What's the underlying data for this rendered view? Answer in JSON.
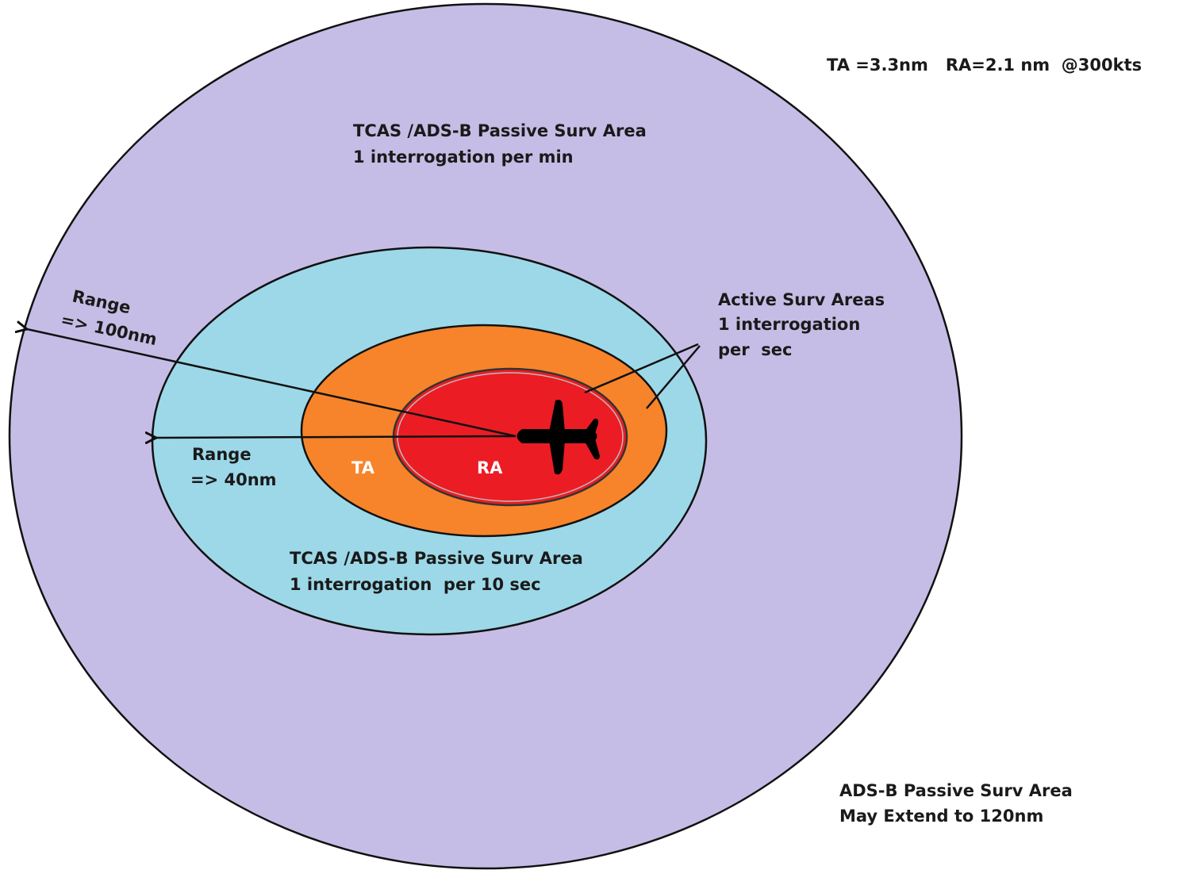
{
  "header": {
    "note": "TA =3.3nm   RA=2.1 nm  @300kts"
  },
  "zones": {
    "outer": {
      "lines": [
        "TCAS /ADS-B Passive Surv Area",
        "1 interrogation per min"
      ]
    },
    "middle": {
      "lines": [
        "TCAS /ADS-B Passive Surv Area",
        "1 interrogation  per 10 sec"
      ]
    },
    "active": {
      "lines": [
        "Active Surv Areas",
        "1 interrogation",
        "per  sec"
      ]
    },
    "ta": {
      "label": "TA"
    },
    "ra": {
      "label": "RA"
    },
    "extended": {
      "lines": [
        "ADS-B Passive Surv Area",
        "May Extend to 120nm"
      ]
    }
  },
  "ranges": {
    "outer": {
      "lines": [
        "Range",
        "=> 100nm"
      ]
    },
    "inner": {
      "lines": [
        "Range",
        "=> 40nm"
      ]
    }
  }
}
